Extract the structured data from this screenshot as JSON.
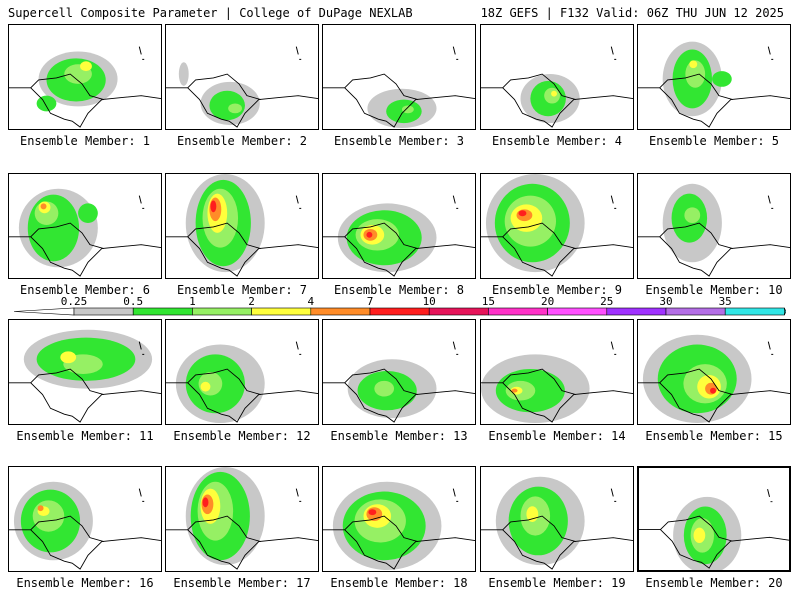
{
  "header": {
    "left": "Supercell Composite Parameter | College of DuPage NEXLAB",
    "right": "18Z GEFS | F132 Valid: 06Z THU JUN 12 2025"
  },
  "colorbar": {
    "labels": [
      "0.25",
      "0.5",
      "1",
      "2",
      "4",
      "7",
      "10",
      "15",
      "20",
      "25",
      "30",
      "35"
    ],
    "colors": [
      "#c8c8c8",
      "#32e632",
      "#96f064",
      "#ffff3c",
      "#ff8c28",
      "#ff1e1e",
      "#e6145a",
      "#ff32c8",
      "#ff50ff",
      "#a032ff",
      "#b46ee6",
      "#32e6e6"
    ]
  },
  "panels": [
    {
      "label": "Ensemble Member: 1"
    },
    {
      "label": "Ensemble Member: 2"
    },
    {
      "label": "Ensemble Member: 3"
    },
    {
      "label": "Ensemble Member: 4"
    },
    {
      "label": "Ensemble Member: 5"
    },
    {
      "label": "Ensemble Member: 6"
    },
    {
      "label": "Ensemble Member: 7"
    },
    {
      "label": "Ensemble Member: 8"
    },
    {
      "label": "Ensemble Member: 9"
    },
    {
      "label": "Ensemble Member: 10"
    },
    {
      "label": "Ensemble Member: 11"
    },
    {
      "label": "Ensemble Member: 12"
    },
    {
      "label": "Ensemble Member: 13"
    },
    {
      "label": "Ensemble Member: 14"
    },
    {
      "label": "Ensemble Member: 15"
    },
    {
      "label": "Ensemble Member: 16"
    },
    {
      "label": "Ensemble Member: 17"
    },
    {
      "label": "Ensemble Member: 18"
    },
    {
      "label": "Ensemble Member: 19"
    },
    {
      "label": "Ensemble Member: 20"
    }
  ]
}
